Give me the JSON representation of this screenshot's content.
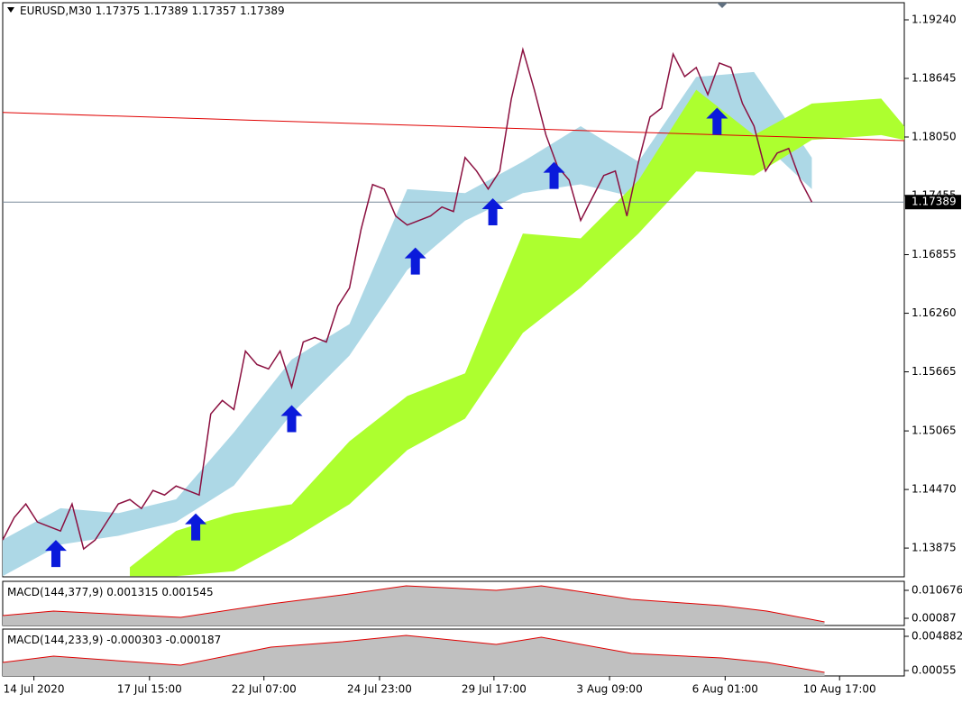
{
  "chart_data": [
    {
      "type": "line",
      "title": "EURUSD,M30",
      "ohlc": [
        1.17375,
        1.17389,
        1.17357,
        1.17389
      ],
      "xlim": [
        0,
        78
      ],
      "xticks": [
        {
          "value": 2.7,
          "label": "14 Jul 2020"
        },
        {
          "value": 12.7,
          "label": "17 Jul 15:00"
        },
        {
          "value": 22.6,
          "label": "22 Jul 07:00"
        },
        {
          "value": 32.6,
          "label": "24 Jul 23:00"
        },
        {
          "value": 42.5,
          "label": "29 Jul 17:00"
        },
        {
          "value": 52.5,
          "label": "3 Aug 09:00"
        },
        {
          "value": 62.5,
          "label": "6 Aug 01:00"
        },
        {
          "value": 72.4,
          "label": "10 Aug 17:00"
        }
      ],
      "ylim": [
        1.13583,
        1.19414
      ],
      "yticks": [
        {
          "value": 1.1924,
          "label": "1.19240"
        },
        1.18645,
        {
          "value": 1.1805,
          "label": "1.18050"
        },
        1.17455,
        1.16855,
        {
          "value": 1.1626,
          "label": "1.16260"
        },
        1.15665,
        1.15065,
        {
          "value": 1.1447,
          "label": "1.14470"
        },
        1.13875
      ],
      "series": [
        {
          "color": "#8b1040",
          "x": [
            0,
            1,
            2,
            3,
            4,
            5,
            6,
            7,
            8,
            9,
            10,
            11,
            12,
            13,
            14,
            15,
            16,
            17,
            18,
            19,
            20,
            21,
            22,
            23,
            24,
            25,
            26,
            27,
            28,
            29,
            30,
            31,
            32,
            33,
            34,
            35,
            36,
            37,
            38,
            39,
            40,
            41,
            42,
            43,
            44,
            45,
            46,
            47,
            48,
            49,
            50,
            51,
            52,
            53,
            54,
            55,
            56,
            57,
            58,
            59,
            60,
            61,
            62,
            63,
            64,
            65,
            66,
            67,
            68,
            69,
            70
          ],
          "values": [
            1.13957,
            1.14186,
            1.14323,
            1.1414,
            1.14094,
            1.14048,
            1.14323,
            1.13866,
            1.13957,
            1.1414,
            1.14323,
            1.14368,
            1.14277,
            1.1446,
            1.14414,
            1.14505,
            1.1446,
            1.14414,
            1.15237,
            1.15374,
            1.15282,
            1.15876,
            1.15739,
            1.15694,
            1.15876,
            1.15511,
            1.15968,
            1.16014,
            1.15968,
            1.16333,
            1.16516,
            1.1711,
            1.17567,
            1.17522,
            1.17247,
            1.17156,
            1.17202,
            1.17247,
            1.17339,
            1.17293,
            1.17842,
            1.17704,
            1.17522,
            1.17704,
            1.18436,
            1.18938,
            1.18527,
            1.1807,
            1.1775,
            1.17613,
            1.17202,
            1.1743,
            1.17659,
            1.17704,
            1.17247,
            1.17796,
            1.18253,
            1.18344,
            1.18893,
            1.18664,
            1.18756,
            1.18481,
            1.18801,
            1.18756,
            1.1839,
            1.18161,
            1.17704,
            1.17887,
            1.17933,
            1.17613,
            1.17389
          ]
        }
      ],
      "bands": [
        {
          "color": "#add8e6",
          "x": [
            0,
            5,
            10,
            15,
            20,
            25,
            30,
            35,
            40,
            45,
            50,
            55,
            60,
            65,
            70
          ],
          "upper": [
            1.1396,
            1.1428,
            1.1423,
            1.1437,
            1.1505,
            1.1579,
            1.1615,
            1.1752,
            1.1748,
            1.178,
            1.1816,
            1.178,
            1.1866,
            1.1871,
            1.1784
          ],
          "lower": [
            1.1359,
            1.1391,
            1.14,
            1.1414,
            1.1451,
            1.1524,
            1.1583,
            1.167,
            1.172,
            1.1748,
            1.1757,
            1.1743,
            1.177,
            1.1807,
            1.1752
          ]
        },
        {
          "color": "#adff2f",
          "x": [
            11,
            15,
            20,
            25,
            30,
            35,
            40,
            45,
            50,
            55,
            60,
            65,
            70,
            76,
            78
          ],
          "upper": [
            1.1368,
            1.1405,
            1.1423,
            1.1432,
            1.1496,
            1.1542,
            1.1565,
            1.1707,
            1.1702,
            1.1761,
            1.1853,
            1.1807,
            1.1839,
            1.1844,
            1.1816
          ],
          "lower": [
            1.1359,
            1.1359,
            1.1364,
            1.1396,
            1.1432,
            1.1487,
            1.1519,
            1.1606,
            1.1652,
            1.1707,
            1.177,
            1.1766,
            1.1802,
            1.1807,
            1.1802
          ]
        }
      ],
      "arrows": {
        "color": "#0a1adb",
        "x": [
          4.6,
          16.7,
          25,
          35.7,
          42.4,
          47.7,
          61.8
        ],
        "values": [
          1.1382,
          1.1409,
          1.1519,
          1.1679,
          1.1729,
          1.1766,
          1.1821
        ]
      },
      "trend_line": {
        "color": "#e00000",
        "x": [
          0,
          78
        ],
        "values": [
          1.18299,
          1.18014
        ]
      },
      "last_price": 1.17389
    },
    {
      "type": "area",
      "title": "MACD(144,377,9)",
      "readings": [
        0.001315,
        0.001545
      ],
      "xlim": [
        0,
        78
      ],
      "ylim": [
        -0.00166,
        0.013836
      ],
      "yticks": [
        0.010676,
        0.00087
      ],
      "fill": "#c0c0c0",
      "color": "#e00000",
      "x": [
        0,
        4.4,
        15.4,
        23.2,
        29.4,
        34.9,
        42.7,
        46.6,
        54.4,
        62.2,
        66.1,
        71.1
      ],
      "values": [
        0.00183,
        0.00341,
        0.0012,
        0.00594,
        0.0091,
        0.01226,
        0.01068,
        0.01226,
        0.00752,
        0.0053,
        0.00341,
        -0.00038
      ]
    },
    {
      "type": "area",
      "title": "MACD(144,233,9)",
      "readings": [
        -0.000303,
        -0.000187
      ],
      "xlim": [
        0,
        78
      ],
      "ylim": [
        -0.000134,
        0.005794
      ],
      "yticks": [
        0.004882,
        0.00055
      ],
      "fill": "#c0c0c0",
      "color": "#e00000",
      "x": [
        0,
        4.4,
        15.4,
        23.2,
        29.4,
        34.9,
        42.7,
        46.6,
        54.4,
        62.2,
        66.1,
        71.1
      ],
      "values": [
        0.00158,
        0.00237,
        0.00123,
        0.00351,
        0.0042,
        0.005,
        0.00386,
        0.00477,
        0.00271,
        0.00214,
        0.00158,
        0.00032
      ]
    }
  ]
}
